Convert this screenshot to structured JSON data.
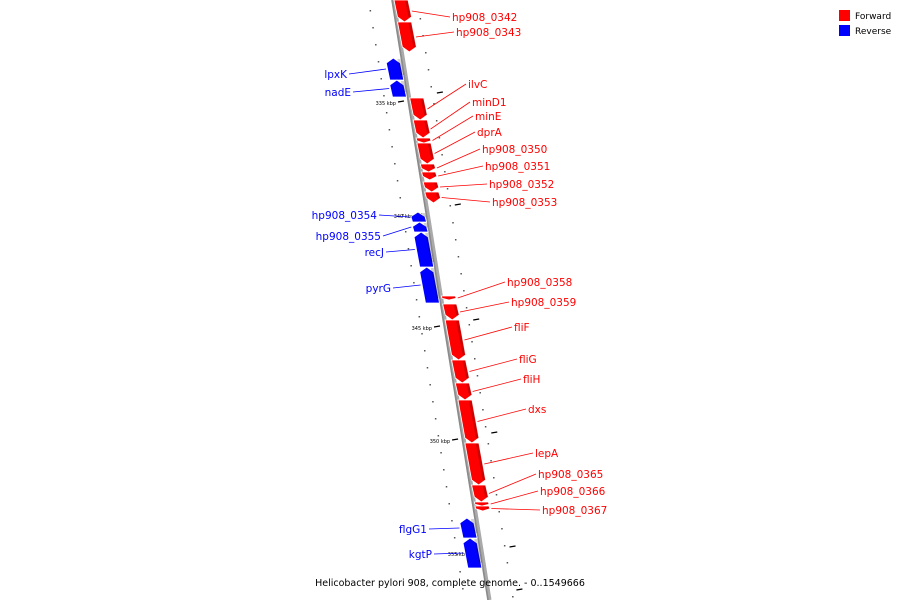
{
  "caption": "Helicobacter pylori 908, complete genome. - 0..1549666",
  "legend": [
    {
      "label": "Forward",
      "color": "#ff0000"
    },
    {
      "label": "Reverse",
      "color": "#0000ff"
    }
  ],
  "colors": {
    "forward": "#ff0000",
    "reverse": "#0000ff",
    "backbone": "#8a8a8a"
  },
  "scale_ticks": [
    {
      "label": "335 kbp",
      "position_kbp": 335
    },
    {
      "label": "340 kbp",
      "position_kbp": 340
    },
    {
      "label": "345 kbp",
      "position_kbp": 345
    },
    {
      "label": "350 kbp",
      "position_kbp": 350
    },
    {
      "label": "355 kbp",
      "position_kbp": 355
    }
  ],
  "genes": [
    {
      "name": "hp908_0342",
      "strand": "forward"
    },
    {
      "name": "hp908_0343",
      "strand": "forward"
    },
    {
      "name": "lpxK",
      "strand": "reverse"
    },
    {
      "name": "nadE",
      "strand": "reverse"
    },
    {
      "name": "ilvC",
      "strand": "forward"
    },
    {
      "name": "minD1",
      "strand": "forward"
    },
    {
      "name": "minE",
      "strand": "forward"
    },
    {
      "name": "dprA",
      "strand": "forward"
    },
    {
      "name": "hp908_0350",
      "strand": "forward"
    },
    {
      "name": "hp908_0351",
      "strand": "forward"
    },
    {
      "name": "hp908_0352",
      "strand": "forward"
    },
    {
      "name": "hp908_0353",
      "strand": "forward"
    },
    {
      "name": "hp908_0354",
      "strand": "reverse"
    },
    {
      "name": "hp908_0355",
      "strand": "reverse"
    },
    {
      "name": "recJ",
      "strand": "reverse"
    },
    {
      "name": "pyrG",
      "strand": "reverse"
    },
    {
      "name": "hp908_0358",
      "strand": "forward"
    },
    {
      "name": "hp908_0359",
      "strand": "forward"
    },
    {
      "name": "fliF",
      "strand": "forward"
    },
    {
      "name": "fliG",
      "strand": "forward"
    },
    {
      "name": "fliH",
      "strand": "forward"
    },
    {
      "name": "dxs",
      "strand": "forward"
    },
    {
      "name": "lepA",
      "strand": "forward"
    },
    {
      "name": "hp908_0365",
      "strand": "forward"
    },
    {
      "name": "hp908_0366",
      "strand": "forward"
    },
    {
      "name": "hp908_0367",
      "strand": "forward"
    },
    {
      "name": "flgG1",
      "strand": "reverse"
    },
    {
      "name": "kgtP",
      "strand": "reverse"
    }
  ]
}
